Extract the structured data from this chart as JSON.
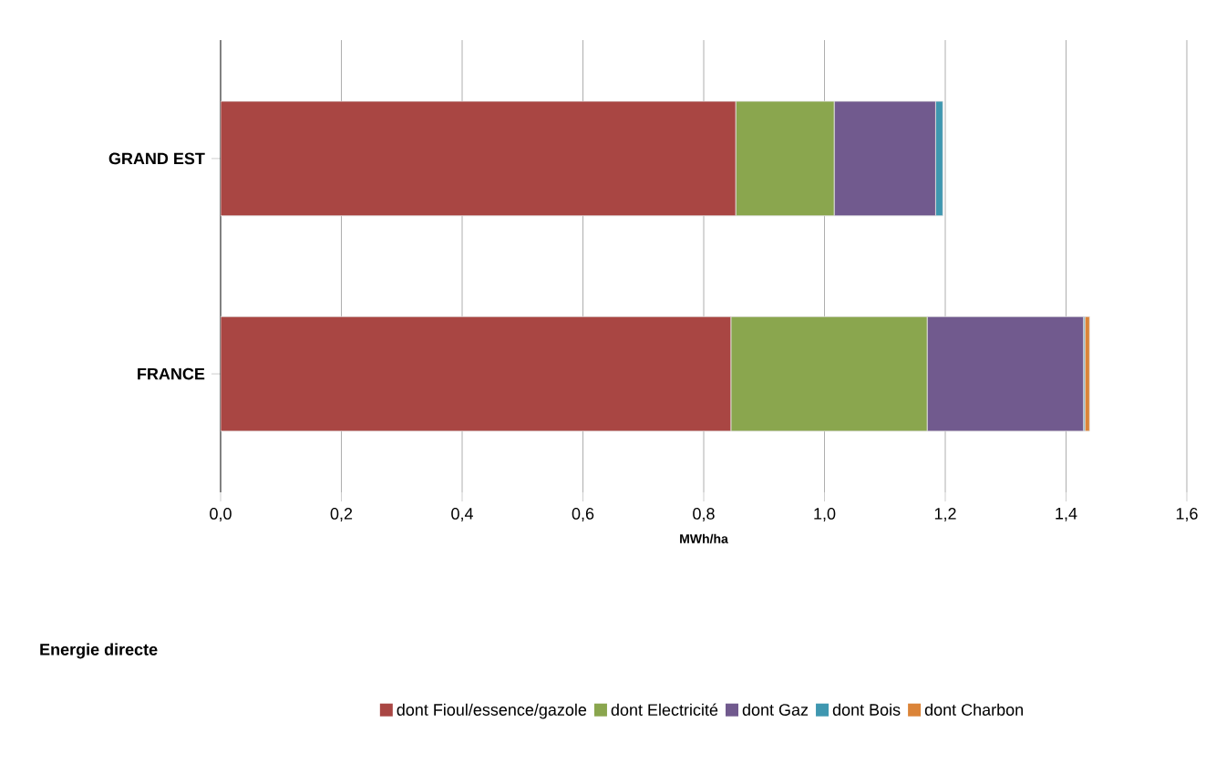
{
  "chart_data": {
    "type": "bar",
    "orientation": "horizontal",
    "stacked": true,
    "categories": [
      "GRAND EST",
      "FRANCE"
    ],
    "series": [
      {
        "name": "dont Fioul/essence/gazole",
        "color": "#a94643",
        "values": [
          0.853,
          0.845
        ]
      },
      {
        "name": "dont Electricité",
        "color": "#8aa64e",
        "values": [
          0.163,
          0.325
        ]
      },
      {
        "name": "dont Gaz",
        "color": "#715a8e",
        "values": [
          0.168,
          0.259
        ]
      },
      {
        "name": "dont Bois",
        "color": "#3f97b0",
        "values": [
          0.012,
          0.002
        ]
      },
      {
        "name": "dont Charbon",
        "color": "#db8438",
        "values": [
          null,
          0.008
        ]
      }
    ],
    "xlabel": "MWh/ha",
    "legend_title": "Energie directe",
    "xlim": [
      0,
      1.6
    ],
    "xticks": [
      {
        "value": 0,
        "label": "0,0"
      },
      {
        "value": 0.2,
        "label": "0,2"
      },
      {
        "value": 0.4,
        "label": "0,4"
      },
      {
        "value": 0.6,
        "label": "0,6"
      },
      {
        "value": 0.8,
        "label": "0,8"
      },
      {
        "value": 1.0,
        "label": "1,0"
      },
      {
        "value": 1.2,
        "label": "1,2"
      },
      {
        "value": 1.4,
        "label": "1,4"
      },
      {
        "value": 1.6,
        "label": "1,6"
      }
    ],
    "grid": "x",
    "legend": "bottom"
  }
}
